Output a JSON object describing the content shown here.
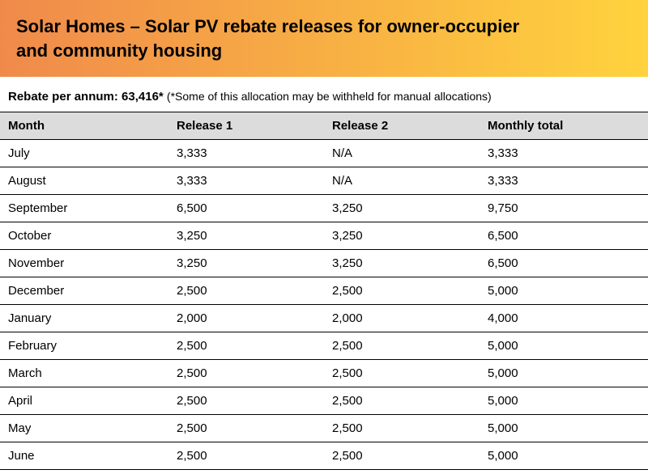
{
  "header": {
    "title_line1": "Solar Homes – Solar PV rebate releases for owner-occupier",
    "title_line2": "and community housing",
    "gradient_from": "#f08a4b",
    "gradient_to": "#ffd33d",
    "title_color": "#000000",
    "title_fontsize": 22
  },
  "subhead": {
    "label": "Rebate per annum:",
    "value": "63,416*",
    "note": "(*Some of this allocation may be withheld for manual allocations)",
    "fontsize": 15
  },
  "table": {
    "header_bg": "#dcdcdc",
    "border_color": "#000000",
    "columns": [
      "Month",
      "Release 1",
      "Release 2",
      "Monthly total"
    ],
    "rows": [
      [
        "July",
        "3,333",
        "N/A",
        "3,333"
      ],
      [
        "August",
        "3,333",
        "N/A",
        "3,333"
      ],
      [
        "September",
        "6,500",
        "3,250",
        "9,750"
      ],
      [
        "October",
        "3,250",
        "3,250",
        "6,500"
      ],
      [
        "November",
        "3,250",
        "3,250",
        "6,500"
      ],
      [
        "December",
        "2,500",
        "2,500",
        "5,000"
      ],
      [
        "January",
        "2,000",
        "2,000",
        "4,000"
      ],
      [
        "February",
        "2,500",
        "2,500",
        "5,000"
      ],
      [
        "March",
        "2,500",
        "2,500",
        "5,000"
      ],
      [
        "April",
        "2,500",
        "2,500",
        "5,000"
      ],
      [
        "May",
        "2,500",
        "2,500",
        "5,000"
      ],
      [
        "June",
        "2,500",
        "2,500",
        "5,000"
      ]
    ]
  }
}
